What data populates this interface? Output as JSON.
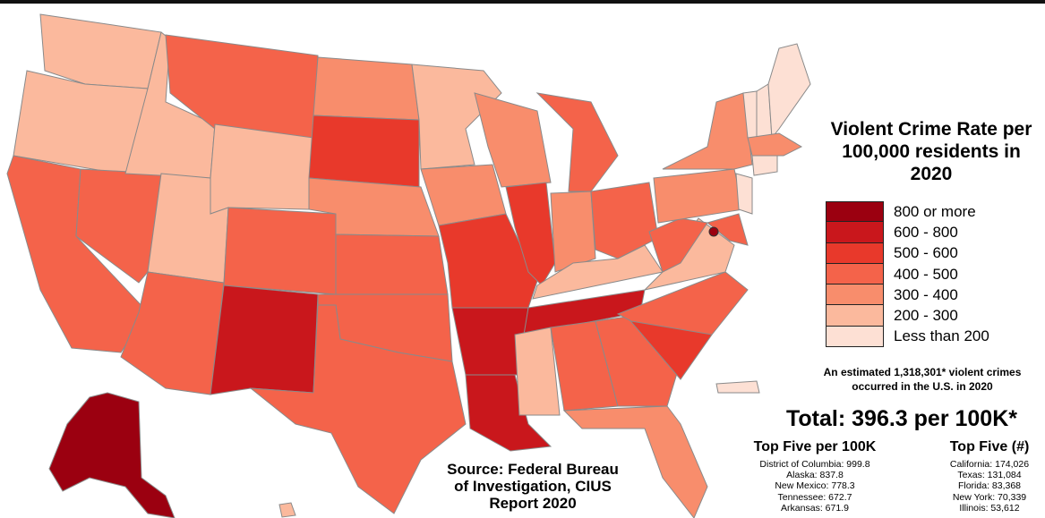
{
  "title": "Violent Crime Rate per 100,000 residents in 2020",
  "legend": [
    {
      "label": "800 or more",
      "color": "#9b0010"
    },
    {
      "label": "600 - 800",
      "color": "#c9171c"
    },
    {
      "label": "500 - 600",
      "color": "#e8392b"
    },
    {
      "label": "400 - 500",
      "color": "#f4634a"
    },
    {
      "label": "300 - 400",
      "color": "#f88d6c"
    },
    {
      "label": "200 - 300",
      "color": "#fbb99d"
    },
    {
      "label": "Less than 200",
      "color": "#fde0d4"
    }
  ],
  "note": "An estimated 1,318,301* violent crimes occurred in the U.S. in 2020",
  "total": "Total: 396.3 per 100K*",
  "top_per_100k": {
    "title": "Top Five per 100K",
    "items": [
      "District of Columbia: 999.8",
      "Alaska: 837.8",
      "New Mexico: 778.3",
      "Tennessee: 672.7",
      "Arkansas: 671.9"
    ]
  },
  "top_count": {
    "title": "Top Five (#)",
    "items": [
      "California: 174,026",
      "Texas: 131,084",
      "Florida: 83,368",
      "New York: 70,339",
      "Illinois: 53,612"
    ]
  },
  "source": "Source: Federal Bureau of Investigation, CIUS Report 2020"
}
